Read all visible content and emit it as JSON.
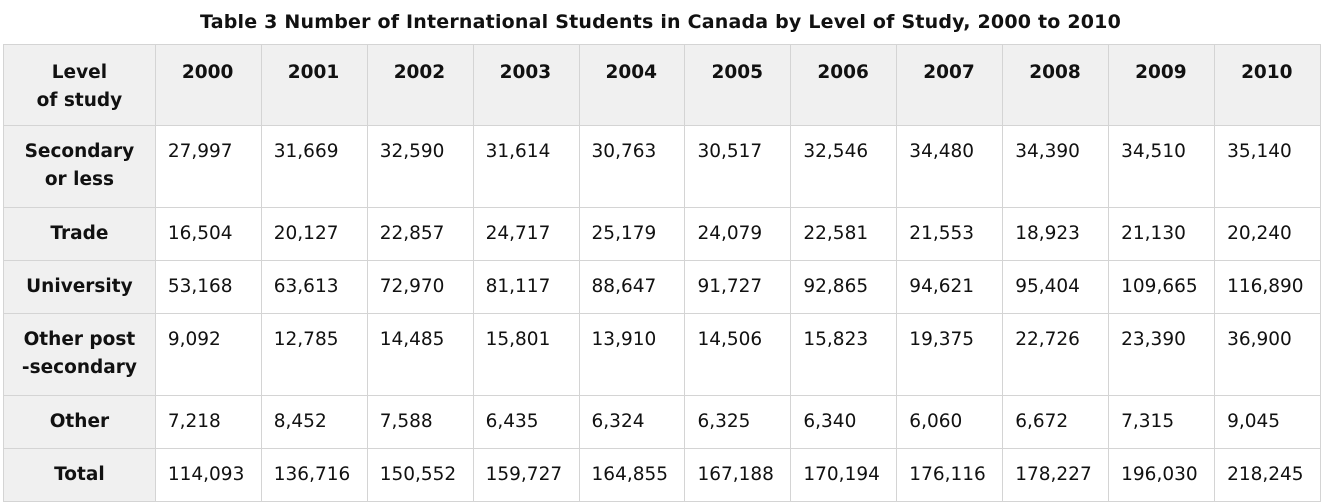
{
  "chart_data": {
    "type": "table",
    "title": "Table 3 Number of International Students in Canada by Level of Study, 2000 to 2010",
    "columns": [
      "Level\nof study",
      "2000",
      "2001",
      "2002",
      "2003",
      "2004",
      "2005",
      "2006",
      "2007",
      "2008",
      "2009",
      "2010"
    ],
    "rows": [
      {
        "label": "Secondary\nor less",
        "values": [
          "27,997",
          "31,669",
          "32,590",
          "31,614",
          "30,763",
          "30,517",
          "32,546",
          "34,480",
          "34,390",
          "34,510",
          "35,140"
        ]
      },
      {
        "label": "Trade",
        "values": [
          "16,504",
          "20,127",
          "22,857",
          "24,717",
          "25,179",
          "24,079",
          "22,581",
          "21,553",
          "18,923",
          "21,130",
          "20,240"
        ]
      },
      {
        "label": "University",
        "values": [
          "53,168",
          "63,613",
          "72,970",
          "81,117",
          "88,647",
          "91,727",
          "92,865",
          "94,621",
          "95,404",
          "109,665",
          "116,890"
        ]
      },
      {
        "label": "Other post\n-secondary",
        "values": [
          "9,092",
          "12,785",
          "14,485",
          "15,801",
          "13,910",
          "14,506",
          "15,823",
          "19,375",
          "22,726",
          "23,390",
          "36,900"
        ]
      },
      {
        "label": "Other",
        "values": [
          "7,218",
          "8,452",
          "7,588",
          "6,435",
          "6,324",
          "6,325",
          "6,340",
          "6,060",
          "6,672",
          "7,315",
          "9,045"
        ]
      },
      {
        "label": "Total",
        "values": [
          "114,093",
          "136,716",
          "150,552",
          "159,727",
          "164,855",
          "167,188",
          "170,194",
          "176,116",
          "178,227",
          "196,030",
          "218,245"
        ]
      }
    ]
  }
}
